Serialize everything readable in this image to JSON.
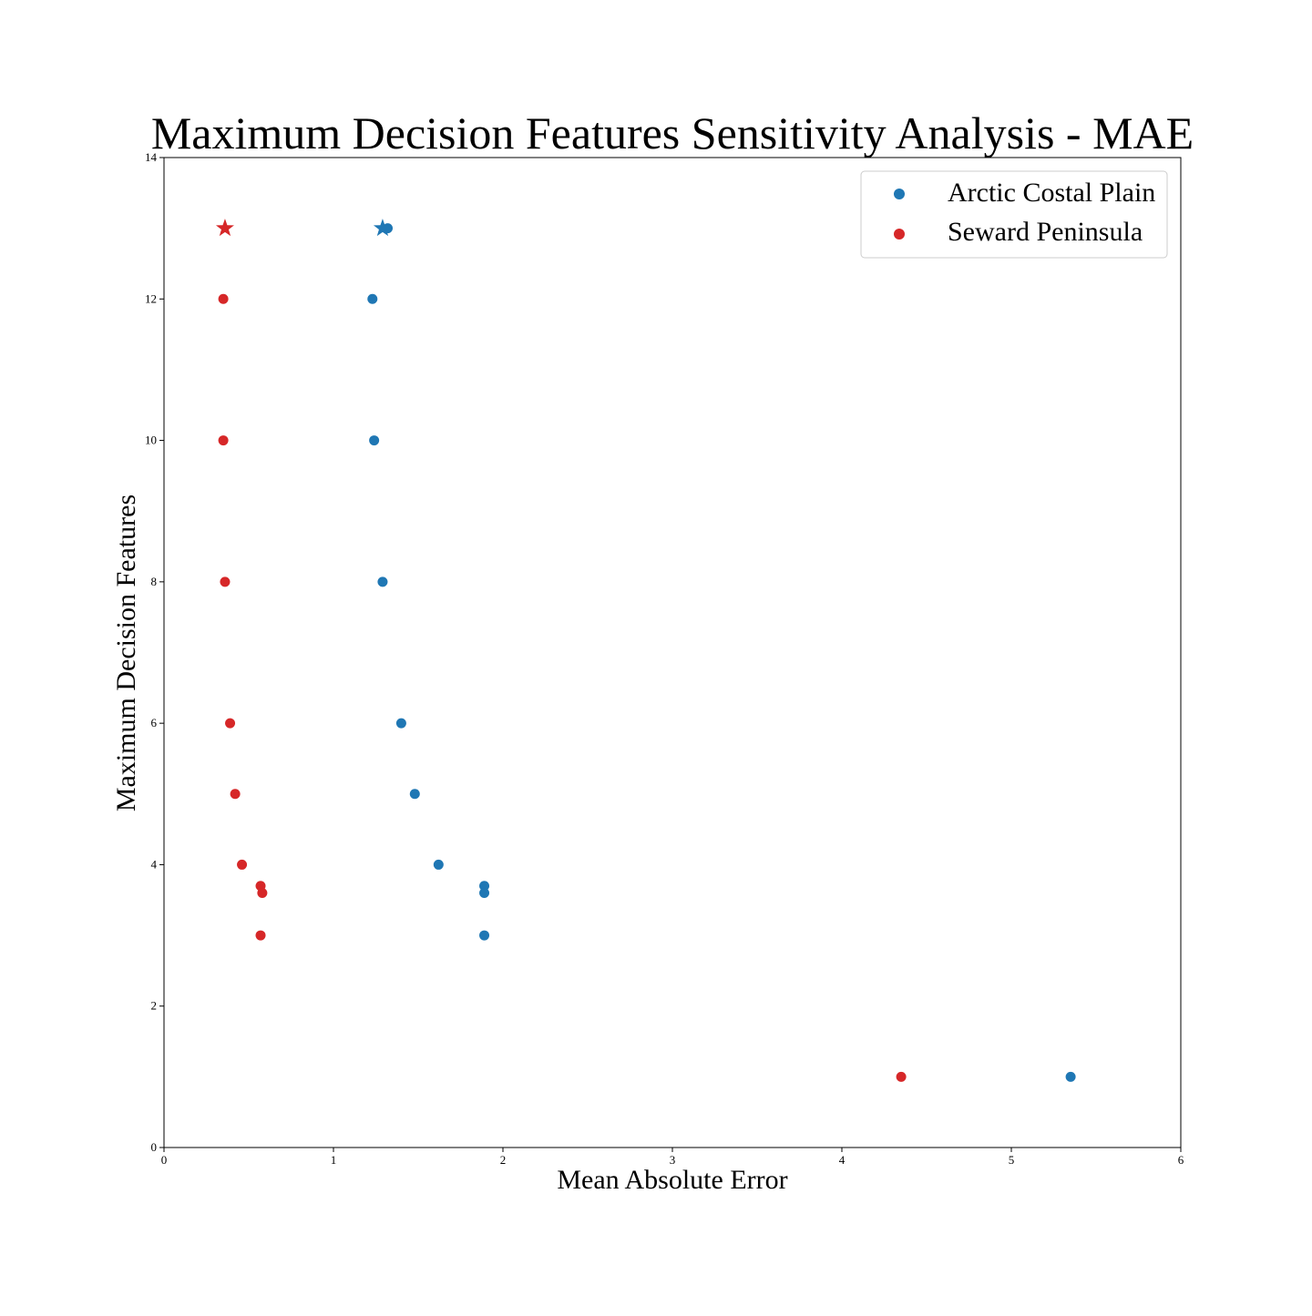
{
  "chart_data": {
    "type": "scatter",
    "title": "Maximum Decision Features Sensitivity Analysis - MAE",
    "xlabel": "Mean Absolute Error",
    "ylabel": "Maximum Decision Features",
    "xlim": [
      0,
      6
    ],
    "ylim": [
      0,
      14
    ],
    "xticks": [
      "0",
      "1",
      "2",
      "3",
      "4",
      "5",
      "6"
    ],
    "yticks": [
      "0",
      "2",
      "4",
      "6",
      "8",
      "10",
      "12",
      "14"
    ],
    "grid": false,
    "legend_position": "top-right",
    "series": [
      {
        "name": "Arctic Costal Plain",
        "color": "#1f77b4",
        "points": [
          {
            "x": 1.32,
            "y": 13
          },
          {
            "x": 1.23,
            "y": 12
          },
          {
            "x": 1.24,
            "y": 10
          },
          {
            "x": 1.29,
            "y": 8
          },
          {
            "x": 1.4,
            "y": 6
          },
          {
            "x": 1.48,
            "y": 5
          },
          {
            "x": 1.62,
            "y": 4
          },
          {
            "x": 1.89,
            "y": 3.7
          },
          {
            "x": 1.89,
            "y": 3.6
          },
          {
            "x": 1.89,
            "y": 3
          },
          {
            "x": 5.35,
            "y": 1
          }
        ],
        "best": {
          "x": 1.29,
          "y": 13
        }
      },
      {
        "name": "Seward Peninsula",
        "color": "#d62728",
        "points": [
          {
            "x": 0.35,
            "y": 12
          },
          {
            "x": 0.35,
            "y": 10
          },
          {
            "x": 0.36,
            "y": 8
          },
          {
            "x": 0.39,
            "y": 6
          },
          {
            "x": 0.42,
            "y": 5
          },
          {
            "x": 0.46,
            "y": 4
          },
          {
            "x": 0.57,
            "y": 3.7
          },
          {
            "x": 0.58,
            "y": 3.6
          },
          {
            "x": 0.57,
            "y": 3
          },
          {
            "x": 4.35,
            "y": 1
          }
        ],
        "best": {
          "x": 0.36,
          "y": 13
        }
      }
    ]
  }
}
